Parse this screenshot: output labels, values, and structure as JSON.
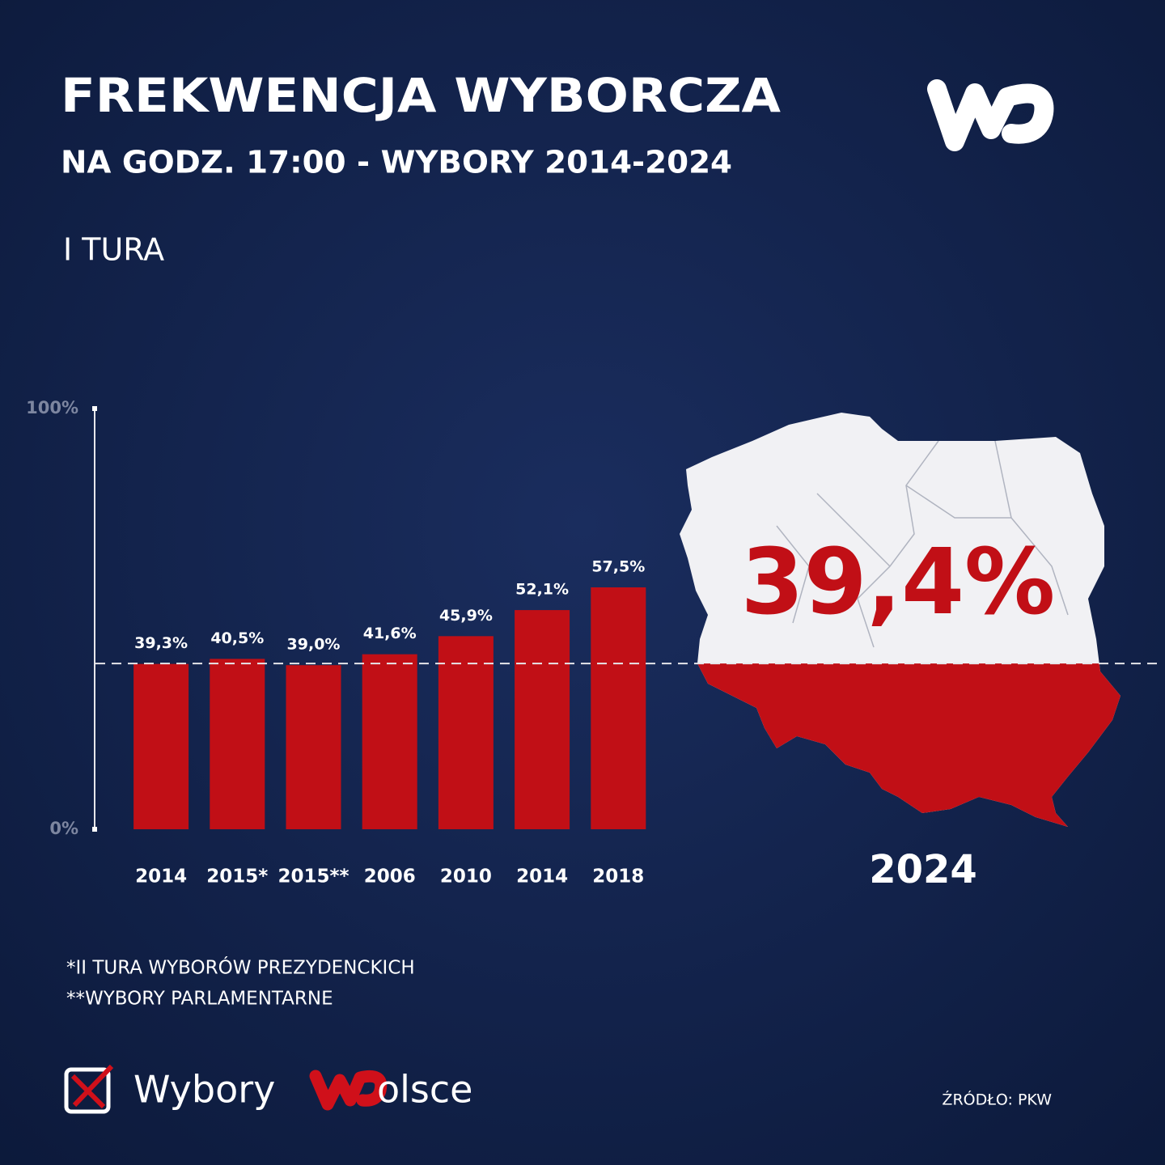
{
  "chart_data": {
    "type": "bar",
    "title": "FREKWENCJA WYBORCZA",
    "subtitle": "NA GODZ. 17:00 -  WYBORY 2014-2024",
    "section_label": "I TURA",
    "categories": [
      "2014",
      "2015*",
      "2015**",
      "2006",
      "2010",
      "2014",
      "2018"
    ],
    "values": [
      39.3,
      40.5,
      39.0,
      41.6,
      45.9,
      52.1,
      57.5
    ],
    "value_labels": [
      "39,3%",
      "40,5%",
      "39,0%",
      "41,6%",
      "45,9%",
      "52,1%",
      "57,5%"
    ],
    "color": "#c10f16",
    "ylim": [
      0,
      100
    ],
    "yticks": [
      {
        "value": 0,
        "label": "0%"
      },
      {
        "value": 100,
        "label": "100%"
      }
    ],
    "reference_line": {
      "value": 39.4,
      "label": "39,4%",
      "year": "2024"
    },
    "footnotes": [
      "*II TURA WYBORÓW PREZYDENCKICH",
      "**WYBORY PARLAMENTARNE"
    ],
    "source": "ŹRÓDŁO: PKW",
    "brand": [
      "Wybory",
      "olsce"
    ]
  }
}
